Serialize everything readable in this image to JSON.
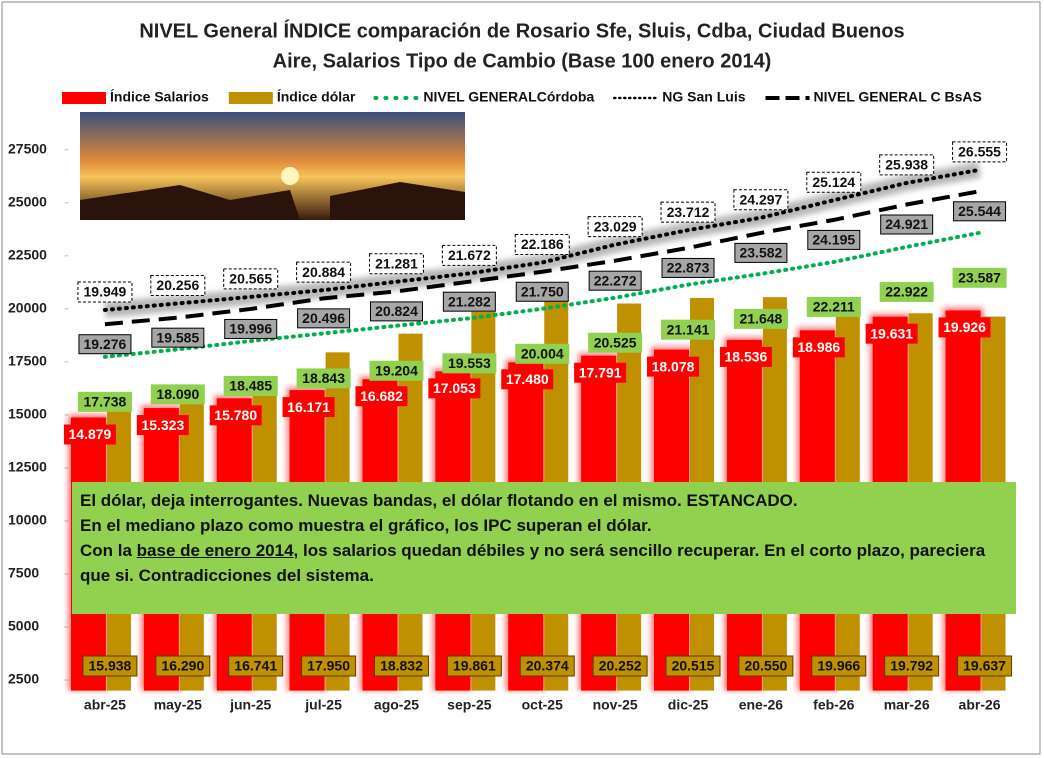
{
  "chart_data": {
    "type": "bar",
    "title": [
      "NIVEL General ÍNDICE comparación de Rosario Sfe, Sluis, Cdba, Ciudad Buenos",
      "Aire, Salarios Tipo de Cambio  (Base 100 enero 2014)"
    ],
    "categories": [
      "abr-25",
      "may-25",
      "jun-25",
      "jul-25",
      "ago-25",
      "sep-25",
      "oct-25",
      "nov-25",
      "dic-25",
      "ene-26",
      "feb-26",
      "mar-26",
      "abr-26"
    ],
    "series": [
      {
        "name": "Índice Salarios",
        "kind": "bar",
        "color": "#ff0000",
        "values": [
          14879,
          15323,
          15780,
          16171,
          16682,
          17053,
          17480,
          17791,
          18078,
          18536,
          18986,
          19631,
          19926
        ],
        "value_labels": [
          "14.879",
          "15.323",
          "15.780",
          "16.171",
          "16.682",
          "17.053",
          "17.480",
          "17.791",
          "18.078",
          "18.536",
          "18.986",
          "19.631",
          "19.926"
        ]
      },
      {
        "name": "Índice dólar",
        "kind": "bar",
        "color": "#bf9000",
        "values": [
          15938,
          16290,
          16741,
          17950,
          18832,
          19861,
          20374,
          20252,
          20515,
          20550,
          19966,
          19792,
          19637
        ],
        "value_labels": [
          "15.938",
          "16.290",
          "16.741",
          "17.950",
          "18.832",
          "19.861",
          "20.374",
          "20.252",
          "20.515",
          "20.550",
          "19.966",
          "19.792",
          "19.637"
        ]
      },
      {
        "name": "NIVEL GENERALCórdoba",
        "kind": "line",
        "dash": "dotted",
        "color": "#00b050",
        "values": [
          17738,
          18090,
          18485,
          18843,
          19204,
          19553,
          20004,
          20525,
          21141,
          21648,
          22211,
          22922,
          23587
        ],
        "value_labels": [
          "17.738",
          "18.090",
          "18.485",
          "18.843",
          "19.204",
          "19.553",
          "20.004",
          "20.525",
          "21.141",
          "21.648",
          "22.211",
          "22.922",
          "23.587"
        ]
      },
      {
        "name": "NG San Luis",
        "kind": "line",
        "dash": "dotted",
        "color": "#000000",
        "values": [
          19949,
          20256,
          20565,
          20884,
          21281,
          21672,
          22186,
          23029,
          23712,
          24297,
          25124,
          25938,
          26555
        ],
        "value_labels": [
          "19.949",
          "20.256",
          "20.565",
          "20.884",
          "21.281",
          "21.672",
          "22.186",
          "23.029",
          "23.712",
          "24.297",
          "25.124",
          "25.938",
          "26.555"
        ]
      },
      {
        "name": "NIVEL GENERAL C BsAS",
        "kind": "line",
        "dash": "dashed",
        "color": "#000000",
        "values": [
          19276,
          19585,
          19996,
          20496,
          20824,
          21282,
          21750,
          22272,
          22873,
          23582,
          24195,
          24921,
          25544
        ],
        "value_labels": [
          "19.276",
          "19.585",
          "19.996",
          "20.496",
          "20.824",
          "21.282",
          "21.750",
          "22.272",
          "22.873",
          "23.582",
          "24.195",
          "24.921",
          "25.544"
        ]
      }
    ],
    "ylim": [
      2000,
      29000
    ],
    "yticks": [
      2500,
      5000,
      7500,
      10000,
      12500,
      15000,
      17500,
      20000,
      22500,
      25000,
      27500
    ],
    "grid": false,
    "annotation": [
      "El dólar, deja interrogantes.  Nuevas bandas, el dólar flotando en el mismo. ESTANCADO.",
      "En el mediano plazo como muestra el gráfico, los IPC superan el dólar.",
      "Con la ",
      "base de enero 2014",
      ", los  salarios quedan débiles y no será sencillo recuperar. En el corto plazo, pareciera que si. Contradicciones del sistema."
    ]
  }
}
